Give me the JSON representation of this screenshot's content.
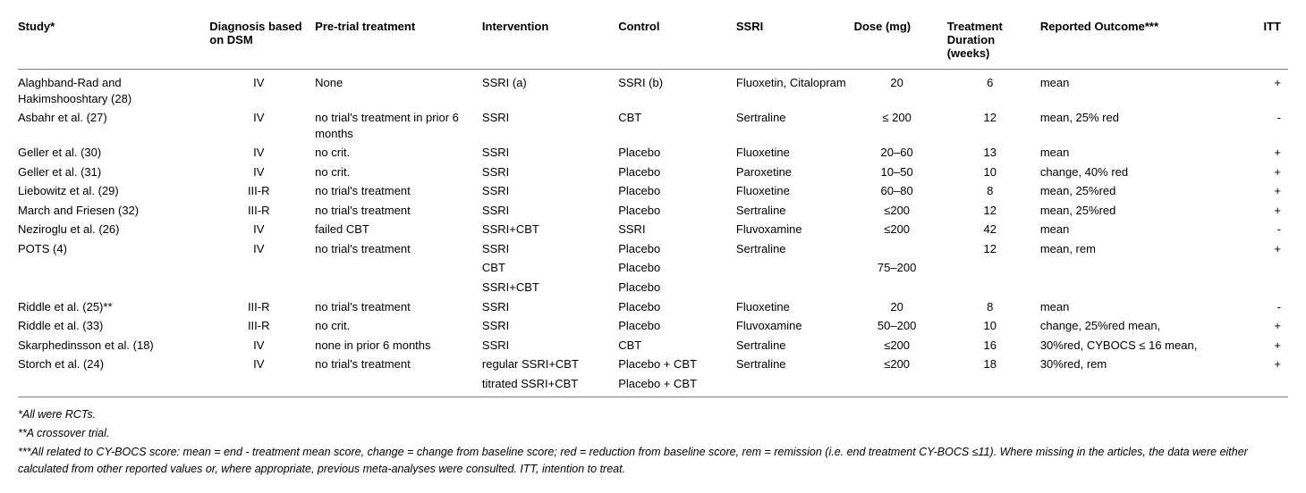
{
  "columns": {
    "study": "Study*",
    "diag": "Diagnosis based on DSM",
    "pretr": "Pre-trial treatment",
    "interv": "Intervention",
    "control": "Control",
    "ssri": "SSRI",
    "dose": "Dose (mg)",
    "dur": "Treatment Duration (weeks)",
    "out": "Reported Outcome***",
    "itt": "ITT"
  },
  "rows": [
    {
      "study": "Alaghband-Rad and Hakimshooshtary (28)",
      "diag": "IV",
      "pretr": "None",
      "interv": "SSRI (a)",
      "control": "SSRI (b)",
      "ssri": "Fluoxetin, Citalopram",
      "dose": "20",
      "dur": "6",
      "out": "mean",
      "itt": "+"
    },
    {
      "study": "Asbahr et al. (27)",
      "diag": "IV",
      "pretr": "no trial's treatment in prior 6 months",
      "interv": "SSRI",
      "control": "CBT",
      "ssri": "Sertraline",
      "dose": "≤ 200",
      "dur": "12",
      "out": "mean, 25% red",
      "itt": "-"
    },
    {
      "study": "Geller et al. (30)",
      "diag": "IV",
      "pretr": "no crit.",
      "interv": "SSRI",
      "control": "Placebo",
      "ssri": "Fluoxetine",
      "dose": "20–60",
      "dur": "13",
      "out": "mean",
      "itt": "+"
    },
    {
      "study": "Geller et al. (31)",
      "diag": "IV",
      "pretr": "no crit.",
      "interv": "SSRI",
      "control": "Placebo",
      "ssri": "Paroxetine",
      "dose": "10–50",
      "dur": "10",
      "out": "change, 40% red",
      "itt": "+"
    },
    {
      "study": "Liebowitz et al. (29)",
      "diag": "III-R",
      "pretr": "no trial's treatment",
      "interv": "SSRI",
      "control": "Placebo",
      "ssri": "Fluoxetine",
      "dose": "60–80",
      "dur": "8",
      "out": "mean, 25%red",
      "itt": "+"
    },
    {
      "study": "March and Friesen (32)",
      "diag": "III-R",
      "pretr": "no trial's treatment",
      "interv": "SSRI",
      "control": "Placebo",
      "ssri": "Sertraline",
      "dose": "≤200",
      "dur": "12",
      "out": "mean, 25%red",
      "itt": "+"
    },
    {
      "study": "Neziroglu et al. (26)",
      "diag": "IV",
      "pretr": "failed CBT",
      "interv": "SSRI+CBT",
      "control": "SSRI",
      "ssri": "Fluvoxamine",
      "dose": "≤200",
      "dur": "42",
      "out": "mean",
      "itt": "-"
    },
    {
      "study": "POTS (4)",
      "diag": "IV",
      "pretr": "no trial's treatment",
      "interv": "SSRI",
      "control": "Placebo",
      "ssri": "Sertraline",
      "dose": "",
      "dur": "12",
      "out": "mean, rem",
      "itt": "+"
    },
    {
      "study": "",
      "diag": "",
      "pretr": "",
      "interv": "CBT",
      "control": "Placebo",
      "ssri": "",
      "dose": "75–200",
      "dur": "",
      "out": "",
      "itt": ""
    },
    {
      "study": "",
      "diag": "",
      "pretr": "",
      "interv": "SSRI+CBT",
      "control": "Placebo",
      "ssri": "",
      "dose": "",
      "dur": "",
      "out": "",
      "itt": ""
    },
    {
      "study": "Riddle et al. (25)**",
      "diag": "III-R",
      "pretr": "no trial's treatment",
      "interv": "SSRI",
      "control": "Placebo",
      "ssri": "Fluoxetine",
      "dose": "20",
      "dur": "8",
      "out": "mean",
      "itt": "-"
    },
    {
      "study": "Riddle et al. (33)",
      "diag": "III-R",
      "pretr": "no crit.",
      "interv": "SSRI",
      "control": "Placebo",
      "ssri": "Fluvoxamine",
      "dose": "50–200",
      "dur": "10",
      "out": "change, 25%red mean,",
      "itt": "+"
    },
    {
      "study": "Skarphedinsson et al. (18)",
      "diag": "IV",
      "pretr": "none in prior 6 months",
      "interv": "SSRI",
      "control": "CBT",
      "ssri": "Sertraline",
      "dose": "≤200",
      "dur": "16",
      "out": "30%red, CYBOCS ≤ 16 mean,",
      "itt": "+"
    },
    {
      "study": "Storch et al. (24)",
      "diag": "IV",
      "pretr": "no trial's treatment",
      "interv": "regular SSRI+CBT",
      "control": "Placebo + CBT",
      "ssri": "Sertraline",
      "dose": "≤200",
      "dur": "18",
      "out": "30%red, rem",
      "itt": "+"
    },
    {
      "study": "",
      "diag": "",
      "pretr": "",
      "interv": "titrated SSRI+CBT",
      "control": "Placebo + CBT",
      "ssri": "",
      "dose": "",
      "dur": "",
      "out": "",
      "itt": ""
    }
  ],
  "footnotes": [
    "*All were RCTs.",
    "**A crossover trial.",
    "***All related to CY-BOCS score: mean = end - treatment mean score, change = change from baseline score; red = reduction from baseline score, rem = remission (i.e. end treatment CY-BOCS ≤11). Where missing in the articles, the data were either calculated from other reported values or, where appropriate, previous meta-analyses were consulted. ITT, intention to treat."
  ]
}
